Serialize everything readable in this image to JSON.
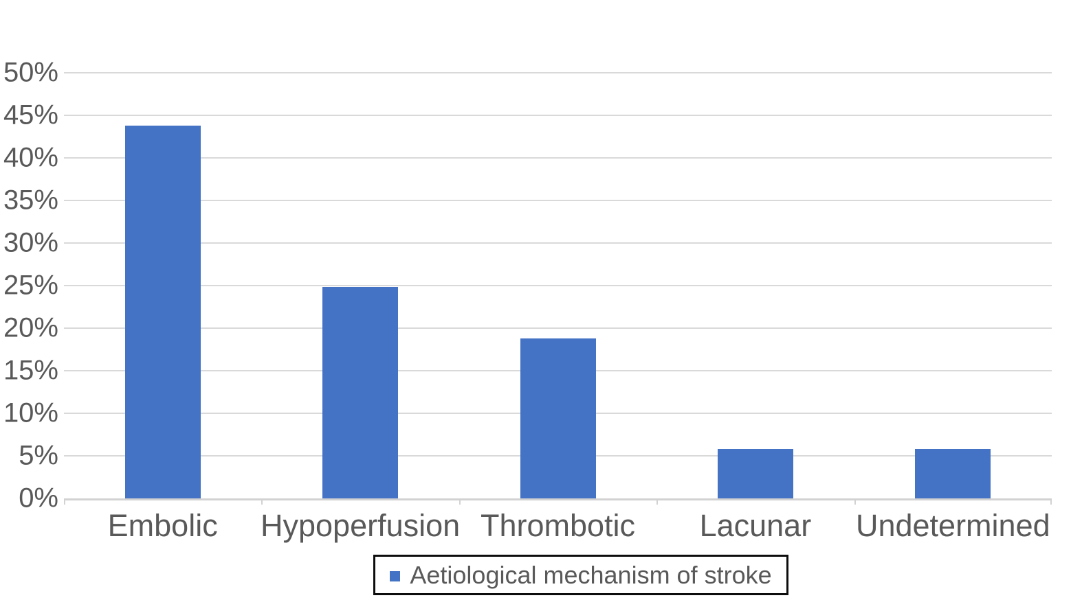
{
  "chart_data": {
    "type": "bar",
    "title": "",
    "xlabel": "",
    "ylabel": "",
    "categories": [
      "Embolic",
      "Hypoperfusion",
      "Thrombotic",
      "Lacunar",
      "Undetermined"
    ],
    "values": [
      43.8,
      24.8,
      18.8,
      5.8,
      5.8
    ],
    "series": [
      {
        "name": "Aetiological mechanism of stroke",
        "values": [
          43.8,
          24.8,
          18.8,
          5.8,
          5.8
        ]
      }
    ],
    "unit": "%",
    "ylim": [
      0,
      50
    ],
    "ytick_step": 5,
    "ytick_labels": [
      "0%",
      "5%",
      "10%",
      "15%",
      "20%",
      "25%",
      "30%",
      "35%",
      "40%",
      "45%",
      "50%"
    ],
    "grid": true,
    "legend": {
      "label": "Aetiological mechanism of stroke",
      "position": "bottom-center"
    },
    "colors": {
      "bar": "#4472c4",
      "gridline": "#d9d9d9",
      "axis": "#d2d2d2",
      "text": "#595959",
      "legend_border": "#0d0d0d",
      "background": "#ffffff"
    }
  }
}
